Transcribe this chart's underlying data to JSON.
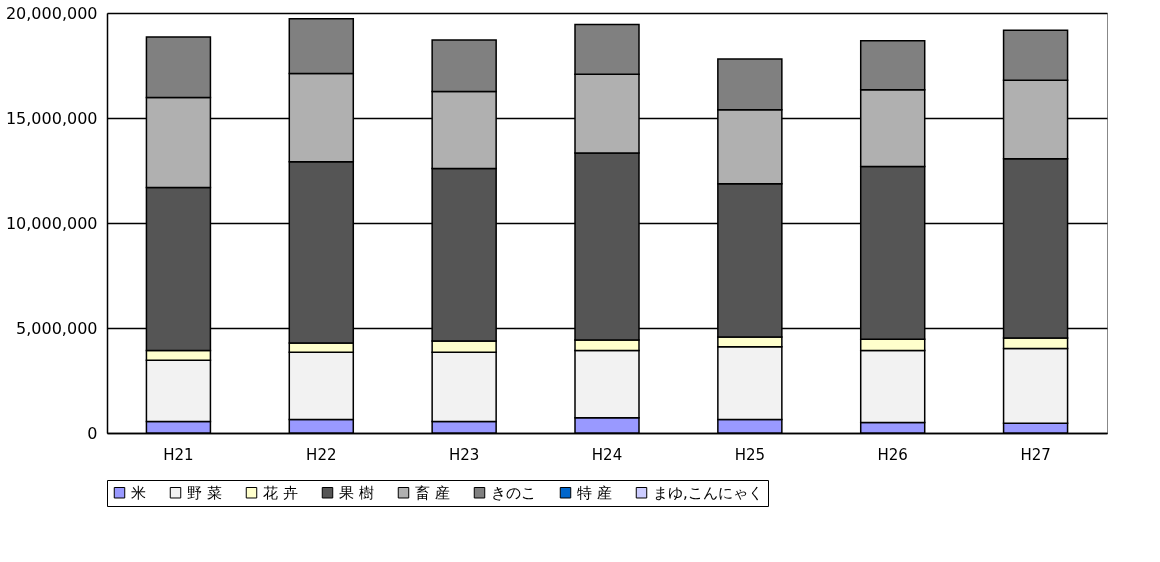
{
  "chart_data": {
    "type": "bar",
    "stacked": true,
    "categories": [
      "H21",
      "H22",
      "H23",
      "H24",
      "H25",
      "H26",
      "H27"
    ],
    "series": [
      {
        "name": "米",
        "color": "#9999ff",
        "values": [
          550000,
          640000,
          550000,
          730000,
          640000,
          500000,
          460000
        ]
      },
      {
        "name": "野 菜",
        "color": "#f2f2f2",
        "values": [
          2920000,
          3200000,
          3290000,
          3200000,
          3470000,
          3430000,
          3560000
        ]
      },
      {
        "name": "花 卉",
        "color": "#ffffcc",
        "values": [
          460000,
          450000,
          540000,
          500000,
          460000,
          540000,
          500000
        ]
      },
      {
        "name": "果 樹",
        "color": "#555555",
        "values": [
          7760000,
          8630000,
          8220000,
          8900000,
          7300000,
          8220000,
          8540000
        ]
      },
      {
        "name": "畜 産",
        "color": "#b0b0b0",
        "values": [
          4290000,
          4200000,
          3660000,
          3750000,
          3520000,
          3660000,
          3740000
        ]
      },
      {
        "name": "きのこ",
        "color": "#808080",
        "values": [
          2880000,
          2610000,
          2460000,
          2370000,
          2420000,
          2330000,
          2380000
        ]
      },
      {
        "name": "特 産",
        "color": "#0066cc",
        "values": [
          null,
          null,
          null,
          null,
          null,
          null,
          null
        ]
      },
      {
        "name": "まゆ,こんにゃく",
        "color": "#ccccff",
        "values": [
          null,
          null,
          null,
          null,
          null,
          null,
          null
        ]
      }
    ],
    "ylim": [
      0,
      20000000
    ],
    "yticks": [
      0,
      {
        "value": 5000000,
        "label": "5,000,000"
      },
      {
        "value": 10000000,
        "label": "10,000,000"
      },
      {
        "value": 15000000,
        "label": "15,000,000"
      },
      {
        "value": 20000000,
        "label": "20,000,000"
      }
    ],
    "grid": "y",
    "legend": "bottom"
  }
}
